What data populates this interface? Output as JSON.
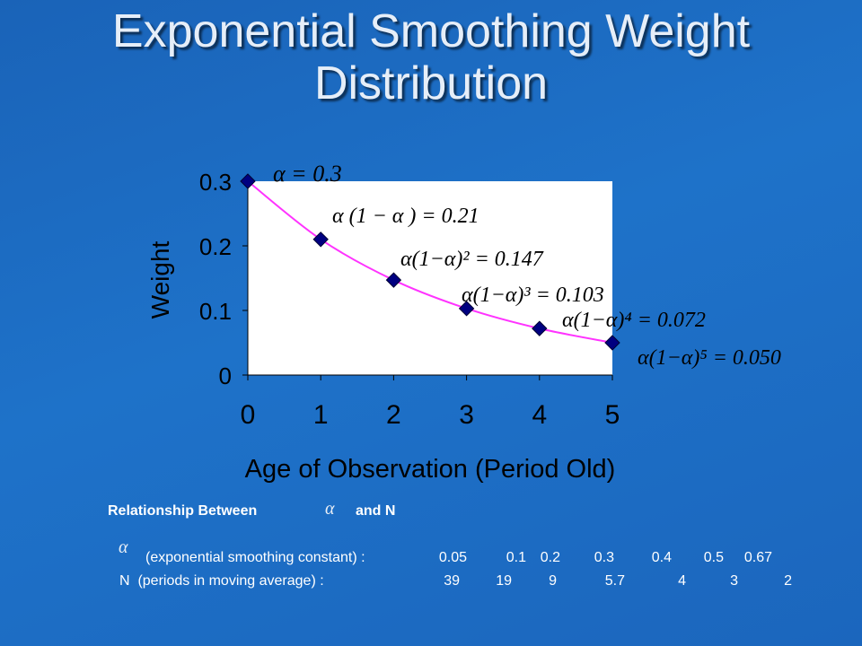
{
  "title_line1": "Exponential Smoothing Weight",
  "title_line2": "Distribution",
  "chart_data": {
    "type": "line",
    "xlabel": "Age of Observation (Period Old)",
    "ylabel": "Weight",
    "x": [
      0,
      1,
      2,
      3,
      4,
      5
    ],
    "series": [
      {
        "values": [
          0.3,
          0.21,
          0.147,
          0.103,
          0.072,
          0.05
        ]
      }
    ],
    "xlim": [
      0,
      5
    ],
    "ylim": [
      0,
      0.3
    ],
    "xticks": [
      "0",
      "1",
      "2",
      "3",
      "4",
      "5"
    ],
    "yticks": [
      "0",
      "0.1",
      "0.2",
      "0.3"
    ],
    "annotations": [
      "α = 0.3",
      "α (1 − α ) = 0.21",
      "α(1−α)² = 0.147",
      "α(1−α)³ = 0.103",
      "α(1−α)⁴ = 0.072",
      "α(1−α)⁵ = 0.050"
    ],
    "line_color": "#ff33ff",
    "marker_color": "#000080",
    "grid": false
  },
  "relationship": {
    "heading": "Relationship Between",
    "alpha_symbol": "α",
    "and_n": "and N",
    "alpha_row_label": "(exponential smoothing constant) :",
    "n_row_label": "N  (periods in moving average) :",
    "alpha_values": [
      "0.05",
      "0.1",
      "0.2",
      "0.3",
      "0.4",
      "0.5",
      "0.67"
    ],
    "n_values": [
      "39",
      "19",
      "9",
      "5.7",
      "4",
      "3",
      "2"
    ]
  }
}
